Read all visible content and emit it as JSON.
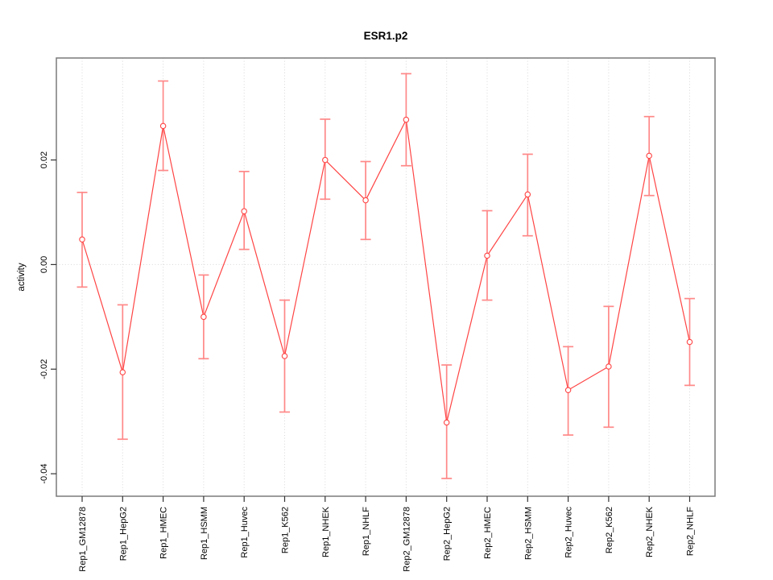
{
  "chart_data": {
    "type": "line",
    "title": "ESR1.p2",
    "xlabel": "",
    "ylabel": "activity",
    "categories": [
      "Rep1_GM12878",
      "Rep1_HepG2",
      "Rep1_HMEC",
      "Rep1_HSMM",
      "Rep1_Huvec",
      "Rep1_K562",
      "Rep1_NHEK",
      "Rep1_NHLF",
      "Rep2_GM12878",
      "Rep2_HepG2",
      "Rep2_HMEC",
      "Rep2_HSMM",
      "Rep2_Huvec",
      "Rep2_K562",
      "Rep2_NHEK",
      "Rep2_NHLF"
    ],
    "series": [
      {
        "name": "activity",
        "values": [
          0.0048,
          -0.0206,
          0.0265,
          -0.01,
          0.0102,
          -0.0175,
          0.02,
          0.0123,
          0.0277,
          -0.0302,
          0.0017,
          0.0134,
          -0.024,
          -0.0195,
          0.0208,
          -0.0148
        ],
        "error_low": [
          -0.0043,
          -0.0334,
          0.018,
          -0.018,
          0.0029,
          -0.0282,
          0.0125,
          0.0048,
          0.0189,
          -0.0409,
          -0.0068,
          0.0055,
          -0.0326,
          -0.0311,
          0.0132,
          -0.0231
        ],
        "error_high": [
          0.0138,
          -0.0077,
          0.0351,
          -0.002,
          0.0178,
          -0.0068,
          0.0278,
          0.0197,
          0.0365,
          -0.0192,
          0.0103,
          0.0211,
          -0.0157,
          -0.008,
          0.0283,
          -0.0065
        ]
      }
    ],
    "ylim": [
      -0.0443,
      0.0395
    ],
    "yticks": [
      0.02,
      0.0,
      -0.02,
      -0.04
    ],
    "ytick_labels": [
      "0.02",
      "0.00",
      "-0.02",
      "-0.04"
    ],
    "legend": "none",
    "grid": {
      "vertical_dotted_per_category": true,
      "horizontal_dotted_zero_line": true
    },
    "marker": "open-circle",
    "colors": {
      "line": "#ff4444",
      "marker_stroke": "#ff4444",
      "marker_fill": "#ffffff",
      "error_bar": "#ff8888",
      "grid": "#d8d8d8",
      "box": "#7a7a7a",
      "tick": "#333333",
      "text": "#000000",
      "background": "#ffffff"
    }
  }
}
